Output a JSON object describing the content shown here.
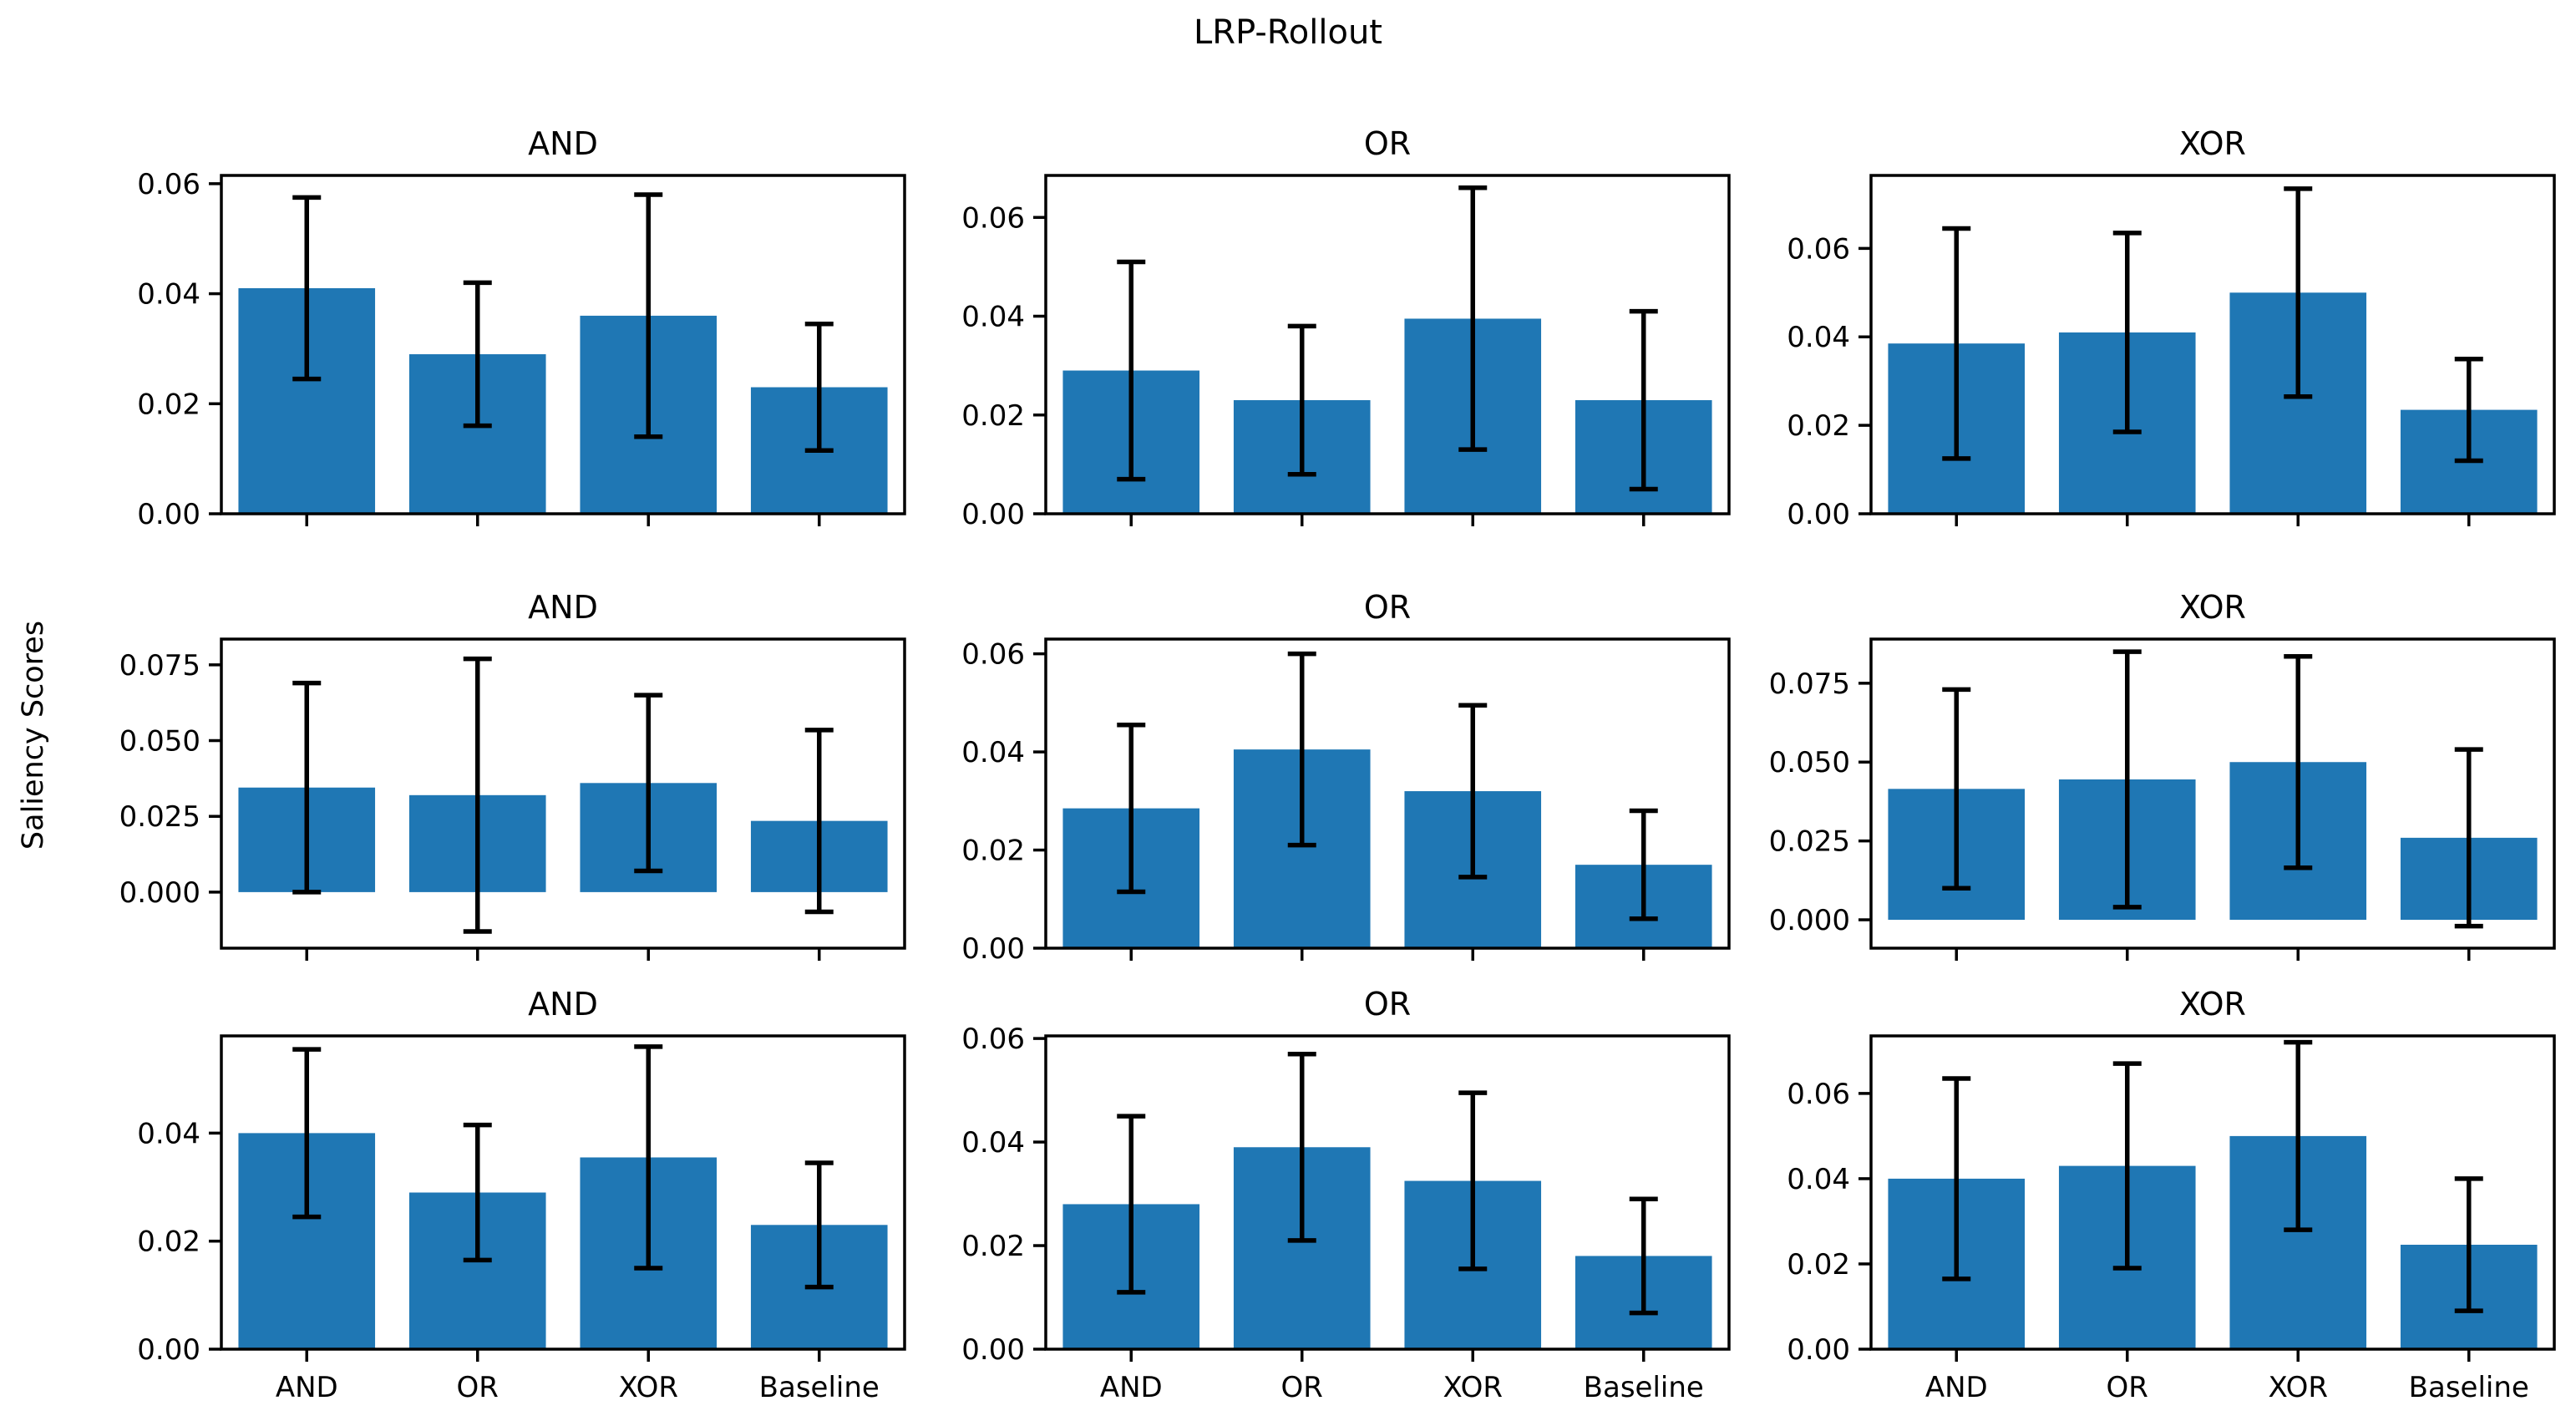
{
  "figure": {
    "suptitle": "LRP-Rollout",
    "ylabel": "Saliency Scores",
    "bar_color": "#1f77b4",
    "axis_color": "#000000",
    "background_color": "#ffffff"
  },
  "chart_data": [
    {
      "type": "bar",
      "title": "AND",
      "grid_position": "row1-col1",
      "categories": [
        "AND",
        "OR",
        "XOR",
        "Baseline"
      ],
      "values": [
        0.041,
        0.029,
        0.036,
        0.023
      ],
      "errors": [
        0.0165,
        0.013,
        0.022,
        0.0115
      ],
      "ylim": [
        0,
        0.0615
      ],
      "yticks": [
        0,
        0.02,
        0.04,
        0.06
      ],
      "ytick_labels": [
        "0.00",
        "0.02",
        "0.04",
        "0.06"
      ],
      "show_xtick_labels": false,
      "grid": false,
      "legend": false
    },
    {
      "type": "bar",
      "title": "OR",
      "grid_position": "row1-col2",
      "categories": [
        "AND",
        "OR",
        "XOR",
        "Baseline"
      ],
      "values": [
        0.029,
        0.023,
        0.0395,
        0.023
      ],
      "errors": [
        0.022,
        0.015,
        0.0265,
        0.018
      ],
      "ylim": [
        0,
        0.0685
      ],
      "yticks": [
        0,
        0.02,
        0.04,
        0.06
      ],
      "ytick_labels": [
        "0.00",
        "0.02",
        "0.04",
        "0.06"
      ],
      "show_xtick_labels": false,
      "grid": false,
      "legend": false
    },
    {
      "type": "bar",
      "title": "XOR",
      "grid_position": "row1-col3",
      "categories": [
        "AND",
        "OR",
        "XOR",
        "Baseline"
      ],
      "values": [
        0.0385,
        0.041,
        0.05,
        0.0235
      ],
      "errors": [
        0.026,
        0.0225,
        0.0235,
        0.0115
      ],
      "ylim": [
        0,
        0.0765
      ],
      "yticks": [
        0,
        0.02,
        0.04,
        0.06
      ],
      "ytick_labels": [
        "0.00",
        "0.02",
        "0.04",
        "0.06"
      ],
      "show_xtick_labels": false,
      "grid": false,
      "legend": false
    },
    {
      "type": "bar",
      "title": "AND",
      "grid_position": "row2-col1",
      "categories": [
        "AND",
        "OR",
        "XOR",
        "Baseline"
      ],
      "values": [
        0.0345,
        0.032,
        0.036,
        0.0235
      ],
      "errors": [
        0.0345,
        0.045,
        0.029,
        0.03
      ],
      "ylim": [
        -0.0185,
        0.0835
      ],
      "yticks": [
        0,
        0.025,
        0.05,
        0.075
      ],
      "ytick_labels": [
        "0.000",
        "0.025",
        "0.050",
        "0.075"
      ],
      "show_xtick_labels": false,
      "grid": false,
      "legend": false
    },
    {
      "type": "bar",
      "title": "OR",
      "grid_position": "row2-col2",
      "categories": [
        "AND",
        "OR",
        "XOR",
        "Baseline"
      ],
      "values": [
        0.0285,
        0.0405,
        0.032,
        0.017
      ],
      "errors": [
        0.017,
        0.0195,
        0.0175,
        0.011
      ],
      "ylim": [
        0,
        0.063
      ],
      "yticks": [
        0,
        0.02,
        0.04,
        0.06
      ],
      "ytick_labels": [
        "0.00",
        "0.02",
        "0.04",
        "0.06"
      ],
      "show_xtick_labels": false,
      "grid": false,
      "legend": false
    },
    {
      "type": "bar",
      "title": "XOR",
      "grid_position": "row2-col3",
      "categories": [
        "AND",
        "OR",
        "XOR",
        "Baseline"
      ],
      "values": [
        0.0415,
        0.0445,
        0.05,
        0.026
      ],
      "errors": [
        0.0315,
        0.0405,
        0.0335,
        0.028
      ],
      "ylim": [
        -0.009,
        0.089
      ],
      "yticks": [
        0,
        0.025,
        0.05,
        0.075
      ],
      "ytick_labels": [
        "0.000",
        "0.025",
        "0.050",
        "0.075"
      ],
      "show_xtick_labels": false,
      "grid": false,
      "legend": false
    },
    {
      "type": "bar",
      "title": "AND",
      "grid_position": "row3-col1",
      "categories": [
        "AND",
        "OR",
        "XOR",
        "Baseline"
      ],
      "values": [
        0.04,
        0.029,
        0.0355,
        0.023
      ],
      "errors": [
        0.0155,
        0.0125,
        0.0205,
        0.0115
      ],
      "ylim": [
        0,
        0.058
      ],
      "yticks": [
        0,
        0.02,
        0.04
      ],
      "ytick_labels": [
        "0.00",
        "0.02",
        "0.04"
      ],
      "show_xtick_labels": true,
      "grid": false,
      "legend": false
    },
    {
      "type": "bar",
      "title": "OR",
      "grid_position": "row3-col2",
      "categories": [
        "AND",
        "OR",
        "XOR",
        "Baseline"
      ],
      "values": [
        0.028,
        0.039,
        0.0325,
        0.018
      ],
      "errors": [
        0.017,
        0.018,
        0.017,
        0.011
      ],
      "ylim": [
        0,
        0.0605
      ],
      "yticks": [
        0,
        0.02,
        0.04,
        0.06
      ],
      "ytick_labels": [
        "0.00",
        "0.02",
        "0.04",
        "0.06"
      ],
      "show_xtick_labels": true,
      "grid": false,
      "legend": false
    },
    {
      "type": "bar",
      "title": "XOR",
      "grid_position": "row3-col3",
      "categories": [
        "AND",
        "OR",
        "XOR",
        "Baseline"
      ],
      "values": [
        0.04,
        0.043,
        0.05,
        0.0245
      ],
      "errors": [
        0.0235,
        0.024,
        0.022,
        0.0155
      ],
      "ylim": [
        0,
        0.0735
      ],
      "yticks": [
        0,
        0.02,
        0.04,
        0.06
      ],
      "ytick_labels": [
        "0.00",
        "0.02",
        "0.04",
        "0.06"
      ],
      "show_xtick_labels": true,
      "grid": false,
      "legend": false
    }
  ]
}
